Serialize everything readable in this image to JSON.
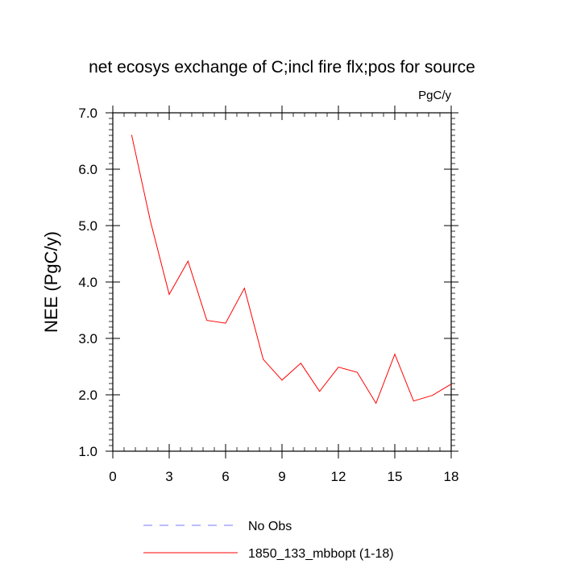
{
  "chart_data": {
    "type": "line",
    "title": "net ecosys exchange of C;incl fire flx;pos for source",
    "units_label": "PgC/y",
    "xlabel": "",
    "ylabel": "NEE  (PgC/y)",
    "xlim": [
      0,
      18
    ],
    "ylim": [
      1.0,
      7.0
    ],
    "x_ticks": [
      0,
      3,
      6,
      9,
      12,
      15,
      18
    ],
    "x_tick_labels": [
      "0",
      "3",
      "6",
      "9",
      "12",
      "15",
      "18"
    ],
    "y_ticks": [
      1.0,
      2.0,
      3.0,
      4.0,
      5.0,
      6.0,
      7.0
    ],
    "y_tick_labels": [
      "1.0",
      "2.0",
      "3.0",
      "4.0",
      "5.0",
      "6.0",
      "7.0"
    ],
    "grid": false,
    "legend_position": "bottom",
    "series": [
      {
        "name": "1850_133_mbbopt (1-18)",
        "color": "#ff0000",
        "style": "solid",
        "x": [
          1,
          2,
          3,
          4,
          5,
          6,
          7,
          8,
          9,
          10,
          11,
          12,
          13,
          14,
          15,
          16,
          17,
          18
        ],
        "y": [
          6.61,
          5.08,
          3.78,
          4.37,
          3.32,
          3.27,
          3.89,
          2.63,
          2.26,
          2.56,
          2.06,
          2.49,
          2.4,
          1.85,
          2.72,
          1.89,
          1.99,
          2.19
        ]
      }
    ],
    "legend": [
      {
        "label": "No Obs",
        "color": "#7777ff",
        "style": "dashed"
      },
      {
        "label": "1850_133_mbbopt (1-18)",
        "color": "#ff0000",
        "style": "solid"
      }
    ]
  }
}
